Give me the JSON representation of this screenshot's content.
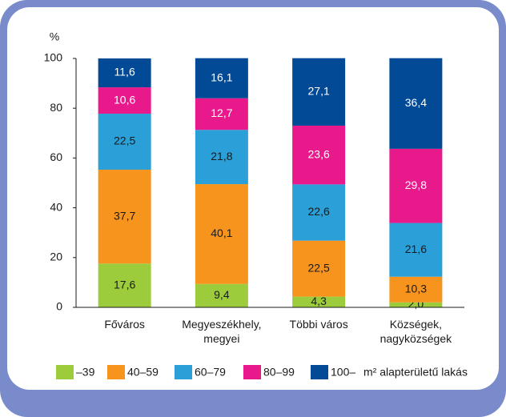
{
  "chart_data": {
    "type": "stacked_bar",
    "y_axis_label": "%",
    "categories": [
      "Főváros",
      "Megyeszékhely, megyei",
      "Többi város",
      "Községek, nagyközségek"
    ],
    "series": [
      {
        "name": "–39",
        "color": "#9ccb3b",
        "values": [
          17.6,
          9.4,
          4.3,
          2.0
        ],
        "value_labels": [
          "17,6",
          "9,4",
          "4,3",
          "2,0"
        ]
      },
      {
        "name": "40–59",
        "color": "#f7941d",
        "values": [
          37.7,
          40.1,
          22.5,
          10.3
        ],
        "value_labels": [
          "37,7",
          "40,1",
          "22,5",
          "10,3"
        ]
      },
      {
        "name": "60–79",
        "color": "#2a9fd8",
        "values": [
          22.5,
          21.8,
          22.6,
          21.6
        ],
        "value_labels": [
          "22,5",
          "21,8",
          "22,6",
          "21,6"
        ]
      },
      {
        "name": "80–99",
        "color": "#e8198b",
        "values": [
          10.6,
          12.7,
          23.6,
          29.8
        ],
        "value_labels": [
          "10,6",
          "12,7",
          "23,6",
          "29,8"
        ]
      },
      {
        "name": "100–",
        "color": "#034a96",
        "values": [
          11.6,
          16.1,
          27.1,
          36.4
        ],
        "value_labels": [
          "11,6",
          "16,1",
          "27,1",
          "36,4"
        ]
      }
    ],
    "legend_suffix": "m² alapterületű lakás",
    "ylim": [
      0,
      100
    ],
    "yticks": [
      0,
      20,
      40,
      60,
      80,
      100
    ]
  }
}
